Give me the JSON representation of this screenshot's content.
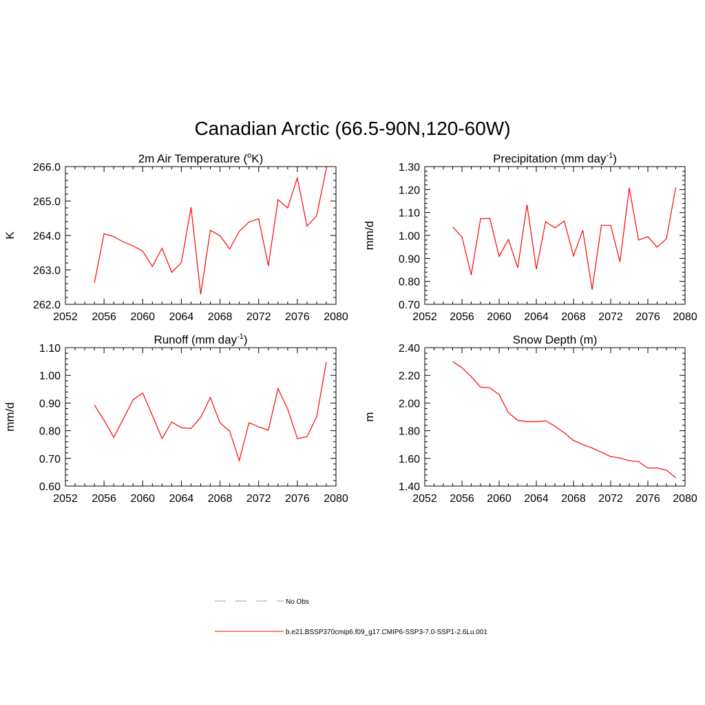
{
  "figure": {
    "title": "Canadian Arctic (66.5-90N,120-60W)"
  },
  "legend": {
    "entries": [
      {
        "label": "No Obs",
        "color": "#9999dd",
        "dash": true
      },
      {
        "label": "b.e21.BSSP370cmip6.f09_g17.CMIP6-SSP3-7.0-SSP1-2.6Lu.001",
        "color": "#ff0000",
        "dash": false
      }
    ]
  },
  "chart_data": [
    {
      "type": "line",
      "title": "2m Air Temperature (",
      "title_sup": "o",
      "title_end": "K)",
      "ylabel": "K",
      "xlim": [
        2052,
        2080
      ],
      "ylim": [
        262.0,
        266.0
      ],
      "xticks": [
        2052,
        2056,
        2060,
        2064,
        2068,
        2072,
        2076,
        2080
      ],
      "yticks": [
        "262.0",
        "263.0",
        "264.0",
        "265.0",
        "266.0"
      ],
      "color": "#ff0000",
      "x": [
        2055,
        2056,
        2057,
        2058,
        2059,
        2060,
        2061,
        2062,
        2063,
        2064,
        2065,
        2066,
        2067,
        2068,
        2069,
        2070,
        2071,
        2072,
        2073,
        2074,
        2075,
        2076,
        2077,
        2078,
        2079
      ],
      "values": [
        262.62,
        264.05,
        263.97,
        263.81,
        263.7,
        263.54,
        263.1,
        263.63,
        262.93,
        263.21,
        264.82,
        262.29,
        264.15,
        263.99,
        263.61,
        264.12,
        264.39,
        264.49,
        263.12,
        265.04,
        264.8,
        265.67,
        264.27,
        264.57,
        265.95
      ]
    },
    {
      "type": "line",
      "title": "Precipitation (mm day",
      "title_sup": "-1",
      "title_end": ")",
      "ylabel": "mm/d",
      "xlim": [
        2052,
        2080
      ],
      "ylim": [
        0.7,
        1.3
      ],
      "xticks": [
        2052,
        2056,
        2060,
        2064,
        2068,
        2072,
        2076,
        2080
      ],
      "yticks": [
        "0.70",
        "0.80",
        "0.90",
        "1.00",
        "1.10",
        "1.20",
        "1.30"
      ],
      "color": "#ff0000",
      "x": [
        2055,
        2056,
        2057,
        2058,
        2059,
        2060,
        2061,
        2062,
        2063,
        2064,
        2065,
        2066,
        2067,
        2068,
        2069,
        2070,
        2071,
        2072,
        2073,
        2074,
        2075,
        2076,
        2077,
        2078,
        2079
      ],
      "values": [
        1.037,
        0.994,
        0.828,
        1.073,
        1.074,
        0.909,
        0.983,
        0.859,
        1.134,
        0.852,
        1.06,
        1.033,
        1.063,
        0.911,
        1.023,
        0.764,
        1.044,
        1.044,
        0.885,
        1.207,
        0.98,
        0.995,
        0.949,
        0.986,
        1.209
      ]
    },
    {
      "type": "line",
      "title": "Runoff (mm day",
      "title_sup": "-1",
      "title_end": ")",
      "ylabel": "mm/d",
      "xlim": [
        2052,
        2080
      ],
      "ylim": [
        0.6,
        1.1
      ],
      "xticks": [
        2052,
        2056,
        2060,
        2064,
        2068,
        2072,
        2076,
        2080
      ],
      "yticks": [
        "0.60",
        "0.70",
        "0.80",
        "0.90",
        "1.00",
        "1.10"
      ],
      "color": "#ff0000",
      "x": [
        2055,
        2056,
        2057,
        2058,
        2059,
        2060,
        2061,
        2062,
        2063,
        2064,
        2065,
        2066,
        2067,
        2068,
        2069,
        2070,
        2071,
        2072,
        2073,
        2074,
        2075,
        2076,
        2077,
        2078,
        2079
      ],
      "values": [
        0.893,
        0.838,
        0.776,
        0.843,
        0.912,
        0.936,
        0.855,
        0.772,
        0.831,
        0.811,
        0.808,
        0.848,
        0.92,
        0.828,
        0.798,
        0.692,
        0.829,
        0.814,
        0.802,
        0.952,
        0.879,
        0.772,
        0.778,
        0.85,
        1.048
      ]
    },
    {
      "type": "line",
      "title": "Snow Depth (m)",
      "title_sup": "",
      "title_end": "",
      "ylabel": "m",
      "xlim": [
        2052,
        2080
      ],
      "ylim": [
        1.4,
        2.4
      ],
      "xticks": [
        2052,
        2056,
        2060,
        2064,
        2068,
        2072,
        2076,
        2080
      ],
      "yticks": [
        "1.40",
        "1.60",
        "1.80",
        "2.00",
        "2.20",
        "2.40"
      ],
      "color": "#ff0000",
      "x": [
        2055,
        2056,
        2057,
        2058,
        2059,
        2060,
        2061,
        2062,
        2063,
        2064,
        2065,
        2066,
        2067,
        2068,
        2069,
        2070,
        2071,
        2072,
        2073,
        2074,
        2075,
        2076,
        2077,
        2078,
        2079
      ],
      "values": [
        2.3,
        2.255,
        2.19,
        2.115,
        2.11,
        2.06,
        1.93,
        1.875,
        1.865,
        1.865,
        1.872,
        1.833,
        1.785,
        1.73,
        1.7,
        1.675,
        1.645,
        1.613,
        1.603,
        1.583,
        1.577,
        1.53,
        1.531,
        1.515,
        1.46
      ]
    }
  ]
}
